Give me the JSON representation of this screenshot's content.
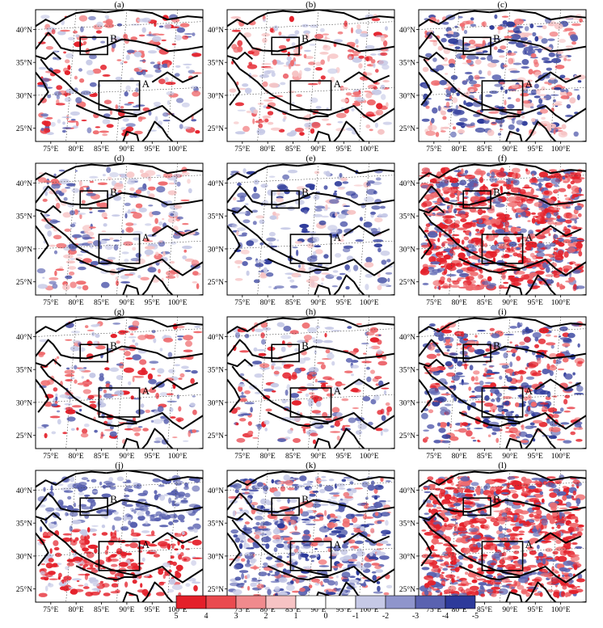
{
  "panels": [
    {
      "label": "(a)",
      "pattern": "mixed-sparse",
      "box_a": "A",
      "box_b": "B"
    },
    {
      "label": "(b)",
      "pattern": "red-sparse",
      "box_a": "A",
      "box_b": "B"
    },
    {
      "label": "(c)",
      "pattern": "blue-dominant",
      "box_a": "A",
      "box_b": "B"
    },
    {
      "label": "(d)",
      "pattern": "light-mixed",
      "box_a": "A",
      "box_b": "B"
    },
    {
      "label": "(e)",
      "pattern": "blue-sparse",
      "box_a": "A",
      "box_b": "B"
    },
    {
      "label": "(f)",
      "pattern": "red-dense",
      "box_a": "A",
      "box_b": "B"
    },
    {
      "label": "(g)",
      "pattern": "mixed-sparse",
      "box_a": "A",
      "box_b": "B"
    },
    {
      "label": "(h)",
      "pattern": "mixed-sparse",
      "box_a": "A",
      "box_b": "B"
    },
    {
      "label": "(i)",
      "pattern": "red-medium",
      "box_a": "A",
      "box_b": "B"
    },
    {
      "label": "(j)",
      "pattern": "blue-north-red-south",
      "box_a": "A",
      "box_b": "B"
    },
    {
      "label": "(k)",
      "pattern": "blue-dense",
      "box_a": "A",
      "box_b": "B"
    },
    {
      "label": "(l)",
      "pattern": "red-dense",
      "box_a": "A",
      "box_b": "B"
    }
  ],
  "lon_ticks": [
    "75°E",
    "80°E",
    "85°E",
    "90°E",
    "95°E",
    "100°E"
  ],
  "lat_ticks": [
    "40°N",
    "35°N",
    "30°N",
    "25°N"
  ],
  "colorbar": {
    "labels": [
      "5",
      "4",
      "3",
      "2",
      "1",
      "0",
      "-1",
      "-2",
      "-3",
      "-4",
      "-5"
    ],
    "colors": [
      "#e4202a",
      "#ea4a4f",
      "#f08a8d",
      "#f6c3c4",
      "#ffffff",
      "#ffffff",
      "#c6c9e6",
      "#8f95cc",
      "#5a62b0",
      "#2d3a9a"
    ]
  },
  "colors": {
    "red_strong": "#e4202a",
    "red_mid": "#ef6b6e",
    "red_light": "#f6c3c4",
    "blue_strong": "#2d3a9a",
    "blue_mid": "#5a62b0",
    "blue_light": "#c6c9e6",
    "border": "#000000"
  }
}
